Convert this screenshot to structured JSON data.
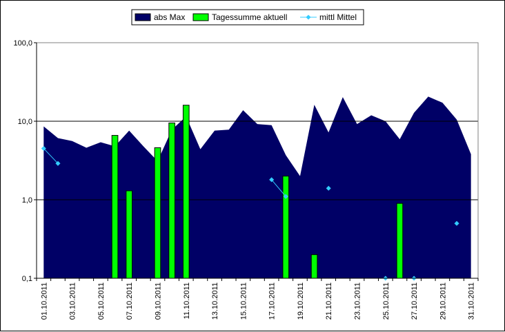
{
  "chart_data": {
    "type": "area",
    "yscale": "log",
    "ylim": [
      0.1,
      100
    ],
    "yticks": [
      {
        "value": 0.1,
        "label": "0,1"
      },
      {
        "value": 1,
        "label": "1,0"
      },
      {
        "value": 10,
        "label": "10,0"
      },
      {
        "value": 100,
        "label": "100,0"
      }
    ],
    "grid": "horizontal",
    "legend_position": "top-center",
    "categories": [
      "01.10.2011",
      "02.10.2011",
      "03.10.2011",
      "04.10.2011",
      "05.10.2011",
      "06.10.2011",
      "07.10.2011",
      "08.10.2011",
      "09.10.2011",
      "10.10.2011",
      "11.10.2011",
      "12.10.2011",
      "13.10.2011",
      "14.10.2011",
      "15.10.2011",
      "16.10.2011",
      "17.10.2011",
      "18.10.2011",
      "19.10.2011",
      "20.10.2011",
      "21.10.2011",
      "22.10.2011",
      "23.10.2011",
      "24.10.2011",
      "25.10.2011",
      "26.10.2011",
      "27.10.2011",
      "28.10.2011",
      "29.10.2011",
      "30.10.2011",
      "31.10.2011"
    ],
    "tick_labels": [
      "01.10.2011",
      "03.10.2011",
      "05.10.2011",
      "07.10.2011",
      "09.10.2011",
      "11.10.2011",
      "13.10.2011",
      "15.10.2011",
      "17.10.2011",
      "19.10.2011",
      "21.10.2011",
      "23.10.2011",
      "25.10.2011",
      "27.10.2011",
      "29.10.2011",
      "31.10.2011"
    ],
    "series": [
      {
        "name": "abs Max",
        "type": "area",
        "color": "#000066",
        "values": [
          8.6,
          6.1,
          5.6,
          4.6,
          5.4,
          4.8,
          7.6,
          4.8,
          3.1,
          7.8,
          11.5,
          4.4,
          7.6,
          7.8,
          13.8,
          9.2,
          8.9,
          3.7,
          2.0,
          16.2,
          7.2,
          20.3,
          9.2,
          11.9,
          10.0,
          5.9,
          12.8,
          20.6,
          17.2,
          10.5,
          3.8
        ]
      },
      {
        "name": "Tagessumme aktuell",
        "type": "bar",
        "color": "#00ff00",
        "values": [
          null,
          null,
          null,
          null,
          null,
          6.6,
          1.3,
          null,
          4.6,
          9.5,
          16.0,
          null,
          null,
          null,
          null,
          null,
          null,
          2.0,
          null,
          0.2,
          null,
          null,
          null,
          null,
          null,
          0.9,
          null,
          null,
          null,
          null,
          null
        ]
      },
      {
        "name": "mittl Mittel",
        "type": "line",
        "color": "#33ccff",
        "values": [
          4.5,
          2.9,
          null,
          null,
          null,
          null,
          null,
          null,
          null,
          null,
          null,
          null,
          null,
          null,
          null,
          null,
          1.8,
          1.1,
          null,
          null,
          1.4,
          null,
          null,
          null,
          0.1,
          null,
          0.1,
          null,
          null,
          0.5,
          null
        ]
      }
    ]
  }
}
